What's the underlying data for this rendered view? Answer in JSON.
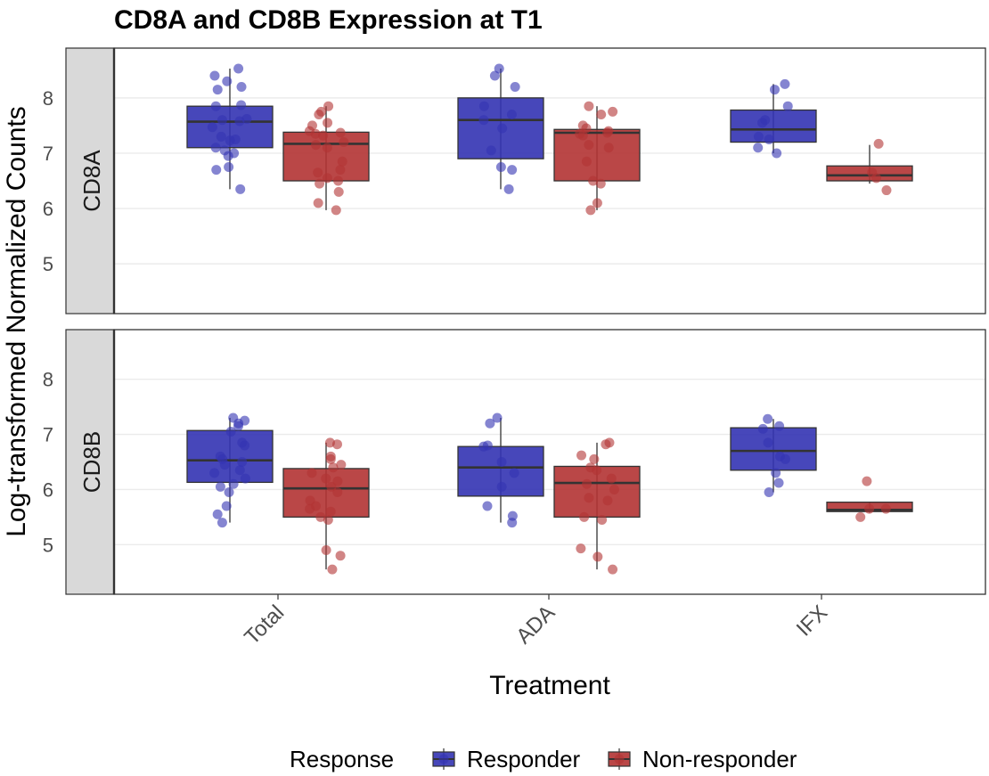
{
  "chart_data": {
    "type": "boxplot",
    "title": "CD8A and CD8B Expression at T1",
    "xlabel": "Treatment",
    "ylabel": "Log-transformed Normalized Counts",
    "categories": [
      "Total",
      "ADA",
      "IFX"
    ],
    "ylim": [
      4.1,
      8.9
    ],
    "yticks": [
      5,
      6,
      7,
      8
    ],
    "grid": true,
    "legend": {
      "title": "Response",
      "position": "bottom",
      "entries": [
        {
          "name": "Responder",
          "color": "#3333B2"
        },
        {
          "name": "Non-responder",
          "color": "#B23333"
        }
      ]
    },
    "colors": {
      "Responder": "#3333B2",
      "Non-responder": "#B23333",
      "strip_bg": "#D9D9D9",
      "panel_border": "#333333",
      "grid": "#EBEBEB"
    },
    "panels": [
      {
        "strip": "CD8A",
        "groups": [
          {
            "category": "Total",
            "response": "Responder",
            "box": {
              "min": 6.35,
              "q1": 7.1,
              "median": 7.57,
              "q3": 7.85,
              "max": 8.53
            },
            "points": [
              8.53,
              8.4,
              8.3,
              8.2,
              8.15,
              7.87,
              7.85,
              7.62,
              7.6,
              7.58,
              7.47,
              7.3,
              7.25,
              7.23,
              7.1,
              7.05,
              7.0,
              6.95,
              6.75,
              6.7,
              6.35
            ]
          },
          {
            "category": "Total",
            "response": "Non-responder",
            "box": {
              "min": 5.97,
              "q1": 6.5,
              "median": 7.17,
              "q3": 7.38,
              "max": 7.85
            },
            "points": [
              7.85,
              7.75,
              7.7,
              7.55,
              7.5,
              7.4,
              7.37,
              7.35,
              7.32,
              7.2,
              7.15,
              7.1,
              6.85,
              6.7,
              6.65,
              6.55,
              6.5,
              6.45,
              6.3,
              6.1,
              5.97
            ]
          },
          {
            "category": "ADA",
            "response": "Responder",
            "box": {
              "min": 6.35,
              "q1": 6.9,
              "median": 7.6,
              "q3": 8.0,
              "max": 8.53
            },
            "points": [
              8.53,
              8.4,
              8.2,
              7.85,
              7.7,
              7.6,
              7.45,
              7.05,
              6.75,
              6.7,
              6.35
            ]
          },
          {
            "category": "ADA",
            "response": "Non-responder",
            "box": {
              "min": 5.97,
              "q1": 6.5,
              "median": 7.37,
              "q3": 7.43,
              "max": 7.85
            },
            "points": [
              7.85,
              7.75,
              7.7,
              7.5,
              7.45,
              7.4,
              7.37,
              7.35,
              7.32,
              7.15,
              7.1,
              6.85,
              6.5,
              6.45,
              6.1,
              5.97
            ]
          },
          {
            "category": "IFX",
            "response": "Responder",
            "box": {
              "min": 7.0,
              "q1": 7.2,
              "median": 7.43,
              "q3": 7.78,
              "max": 8.25
            },
            "points": [
              8.25,
              8.15,
              7.85,
              7.6,
              7.55,
              7.3,
              7.25,
              7.1,
              7.0
            ]
          },
          {
            "category": "IFX",
            "response": "Non-responder",
            "box": {
              "min": 6.45,
              "q1": 6.5,
              "median": 6.6,
              "q3": 6.77,
              "max": 7.15
            },
            "points": [
              7.17,
              6.65,
              6.55,
              6.33
            ]
          }
        ]
      },
      {
        "strip": "CD8B",
        "groups": [
          {
            "category": "Total",
            "response": "Responder",
            "box": {
              "min": 5.4,
              "q1": 6.13,
              "median": 6.53,
              "q3": 7.07,
              "max": 7.3
            },
            "points": [
              7.3,
              7.25,
              7.2,
              7.15,
              7.05,
              6.85,
              6.8,
              6.6,
              6.55,
              6.5,
              6.45,
              6.35,
              6.3,
              6.2,
              6.1,
              6.05,
              5.95,
              5.7,
              5.55,
              5.4
            ]
          },
          {
            "category": "Total",
            "response": "Non-responder",
            "box": {
              "min": 4.55,
              "q1": 5.5,
              "median": 6.02,
              "q3": 6.38,
              "max": 6.85
            },
            "points": [
              6.85,
              6.82,
              6.6,
              6.55,
              6.45,
              6.4,
              6.3,
              6.2,
              6.15,
              6.05,
              5.95,
              5.8,
              5.7,
              5.65,
              5.6,
              5.5,
              5.45,
              4.9,
              4.8,
              4.55
            ]
          },
          {
            "category": "ADA",
            "response": "Responder",
            "box": {
              "min": 5.4,
              "q1": 5.88,
              "median": 6.4,
              "q3": 6.78,
              "max": 7.3
            },
            "points": [
              7.3,
              7.2,
              6.8,
              6.78,
              6.5,
              6.3,
              6.05,
              5.7,
              5.52,
              5.4
            ]
          },
          {
            "category": "ADA",
            "response": "Non-responder",
            "box": {
              "min": 4.55,
              "q1": 5.5,
              "median": 6.12,
              "q3": 6.42,
              "max": 6.85
            },
            "points": [
              6.85,
              6.82,
              6.62,
              6.55,
              6.4,
              6.35,
              6.2,
              6.1,
              6.0,
              5.85,
              5.8,
              5.5,
              5.45,
              4.93,
              4.78,
              4.55
            ]
          },
          {
            "category": "IFX",
            "response": "Responder",
            "box": {
              "min": 5.95,
              "q1": 6.35,
              "median": 6.7,
              "q3": 7.12,
              "max": 7.28
            },
            "points": [
              7.28,
              7.15,
              7.1,
              6.85,
              6.6,
              6.55,
              6.3,
              6.12,
              5.95
            ]
          },
          {
            "category": "IFX",
            "response": "Non-responder",
            "box": {
              "min": 5.58,
              "q1": 5.6,
              "median": 5.63,
              "q3": 5.77,
              "max": 5.78
            },
            "points": [
              6.15,
              5.65,
              5.65,
              5.5
            ]
          }
        ]
      }
    ]
  }
}
